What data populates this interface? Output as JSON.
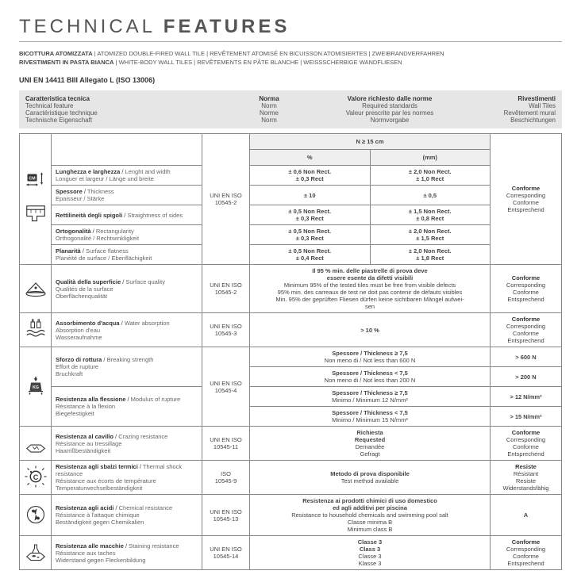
{
  "title_light": "TECHNICAL ",
  "title_bold": "FEATURES",
  "subtitle_lines": [
    {
      "b": "BICOTTURA ATOMIZZATA",
      "rest": " | ATOMIZED DOUBLE-FIRED WALL TILE | REVÊTEMENT ATOMISÉ EN BICUISSON ATOMISIERTES | ZWEIBRANDVERFAHREN"
    },
    {
      "b": "RIVESTIMENTI IN PASTA BIANCA",
      "rest": " | WHITE-BODY WALL TILES | REVÊTEMENTS EN PÂTE BLANCHE | WEISSSCHERBIGE WANDFLIESEN"
    }
  ],
  "standard": "UNI EN 14411 BIII Allegato L (ISO 13006)",
  "header": {
    "c1": [
      "Caratteristica tecnica",
      "Technical feature",
      "Caractéristique technique",
      "Technische Eigenschaft"
    ],
    "c2": [
      "Norma",
      "Norm",
      "Norme",
      "Norm"
    ],
    "c3": [
      "Valore richiesto dalle norme",
      "Required standards",
      "Valeur prescrite par les normes",
      "Normvorgabe"
    ],
    "c4": [
      "Rivestimenti",
      "Wall Tiles",
      "Revêtement mural",
      "Beschichtungen"
    ]
  },
  "topN": "N ≥ 15 cm",
  "pct": "%",
  "mm": "(mm)",
  "dim_norm": "UNI EN ISO 10545-2",
  "conforme4": [
    "Conforme",
    "Corresponding",
    "Conforme",
    "Entsprechend"
  ],
  "dims": [
    {
      "it": "Lunghezza e larghezza",
      "en": "Lenght and width",
      "fr": "Longuer et largeur / Länge und breite",
      "p": "± 0,6 Non Rect.\n± 0,3 Rect",
      "m": "± 2,0 Non Rect.\n± 1,0 Rect"
    },
    {
      "it": "Spessore",
      "en": "Thickness",
      "fr": "Epaisseur / Stärke",
      "p": "± 10",
      "m": "± 0,5"
    },
    {
      "it": "Rettilineità degli spigoli",
      "en": "Straightness of sides",
      "fr": "",
      "p": "± 0,5 Non Rect.\n± 0,3 Rect",
      "m": "± 1,5 Non Rect.\n± 0,8 Rect"
    },
    {
      "it": "Ortogonalità",
      "en": "Rectangularity",
      "fr": "Orthogonalité / Rechtwinkligkeit",
      "p": "± 0,5 Non Rect.\n± 0,3 Rect",
      "m": "± 2,0 Non Rect.\n± 1,5 Rect"
    },
    {
      "it": "Planarità",
      "en": "Surface flatness",
      "fr": "Planéité de surface / Ebenflächigkeit",
      "p": "± 0,5 Non Rect.\n± 0,4 Rect",
      "m": "± 2,0 Non Rect.\n± 1,8 Rect"
    }
  ],
  "rows": [
    {
      "icon": "surface",
      "feat": [
        "Qualità della superficie",
        "Surface quality",
        "Qualités de la surface",
        "Oberflächenqualität"
      ],
      "norm": "UNI EN ISO 10545-2",
      "req": [
        "Il 95 % min. delle piastrelle di prova deve",
        "essere esente da difetti visibili",
        "Minimum 95% of the tested tiles must be free from visible defects",
        "95% min. des carreaux de test ne doit pas contenir de défauts visibles",
        "Min. 95% der geprüften Fliesen dürfen keine sichtbaren Mängel aufwei-",
        "sen"
      ],
      "res": [
        "Conforme",
        "Corresponding",
        "Conforme",
        "Entsprechend"
      ]
    },
    {
      "icon": "water",
      "feat": [
        "Assorbimento d'acqua",
        "Water absorption",
        "Absorption d'eau",
        "Wasseraufnahme"
      ],
      "norm": "UNI EN ISO 10545-3",
      "req": [
        "> 10 %"
      ],
      "res": [
        "Conforme",
        "Corresponding",
        "Conforme",
        "Entsprechend"
      ]
    }
  ],
  "strength_norm": "UNI EN ISO 10545-4",
  "strength": [
    {
      "feat": [
        "Sforzo di rottura",
        "Breaking strength",
        "Effort de rupture",
        "Bruchkraft"
      ],
      "req1": "Spessore / Thickness ≥ 7,5\nNon meno di / Not less than 600 N",
      "res1": "> 600 N",
      "req2": "Spessore / Thickness < 7,5\nNon meno di / Not less than 200 N",
      "res2": "> 200 N"
    },
    {
      "feat": [
        "Resistenza alla flessione",
        "Modulus of rupture",
        "Résistance à la flexion",
        "Biegefestigkeit"
      ],
      "req1": "Spessore / Thickness ≥ 7,5\nMinimo / Minimum 12 N/mm²",
      "res1": "> 12 N/mm²",
      "req2": "Spessore / Thickness < 7,5\nMinimo / Minimum 15 N/mm²",
      "res2": "> 15 N/mm²"
    }
  ],
  "rows2": [
    {
      "icon": "crazing",
      "feat": [
        "Resistenza al cavillo",
        "Crazing resistance",
        "Résistance au tressillage",
        "Haarrißbeständigkeit"
      ],
      "norm": "UNI EN ISO 10545-11",
      "req": [
        "Richiesta",
        "Requested",
        "Demandée",
        "Gefragt"
      ],
      "res": [
        "Conforme",
        "Corresponding",
        "Conforme",
        "Entsprechend"
      ]
    },
    {
      "icon": "thermal",
      "feat": [
        "Resistenza agli sbalzi termici",
        "Thermal shock resistance",
        "Résistance aux écorts de température",
        "Temperaturwechselbeständigkeit"
      ],
      "norm": "ISO 10545-9",
      "req": [
        "Metodo di prova disponibile",
        "Test method available"
      ],
      "res": [
        "Resiste",
        "Résistant",
        "Resiste",
        "Widerstandsfähig"
      ]
    },
    {
      "icon": "chem",
      "feat": [
        "Resistenza agli acidi",
        "Chemical resistance",
        "Résistance à l'attaque chimique",
        "Beständigkeit gegen Chemikalien"
      ],
      "norm": "UNI EN ISO 10545-13",
      "req": [
        "Resistenza ai prodotti chimici di uso domestico",
        "ed agli additivi per piscina",
        "Resistance to household chemicals and swimming pool salt",
        "Classe minima B",
        "Minimum class B"
      ],
      "res": [
        "A"
      ]
    },
    {
      "icon": "stain",
      "feat": [
        "Resistenza alle macchie",
        "Staining  resistance",
        "Résistance aux taches",
        "Widerstand gegen Fleckenbildung"
      ],
      "norm": "UNI EN ISO 10545-14",
      "req": [
        "Classe 3",
        "Class 3",
        "Classe 3",
        "Klasse 3"
      ],
      "res": [
        "Conforme",
        "Corresponding",
        "Conforme",
        "Entsprechend"
      ]
    }
  ]
}
